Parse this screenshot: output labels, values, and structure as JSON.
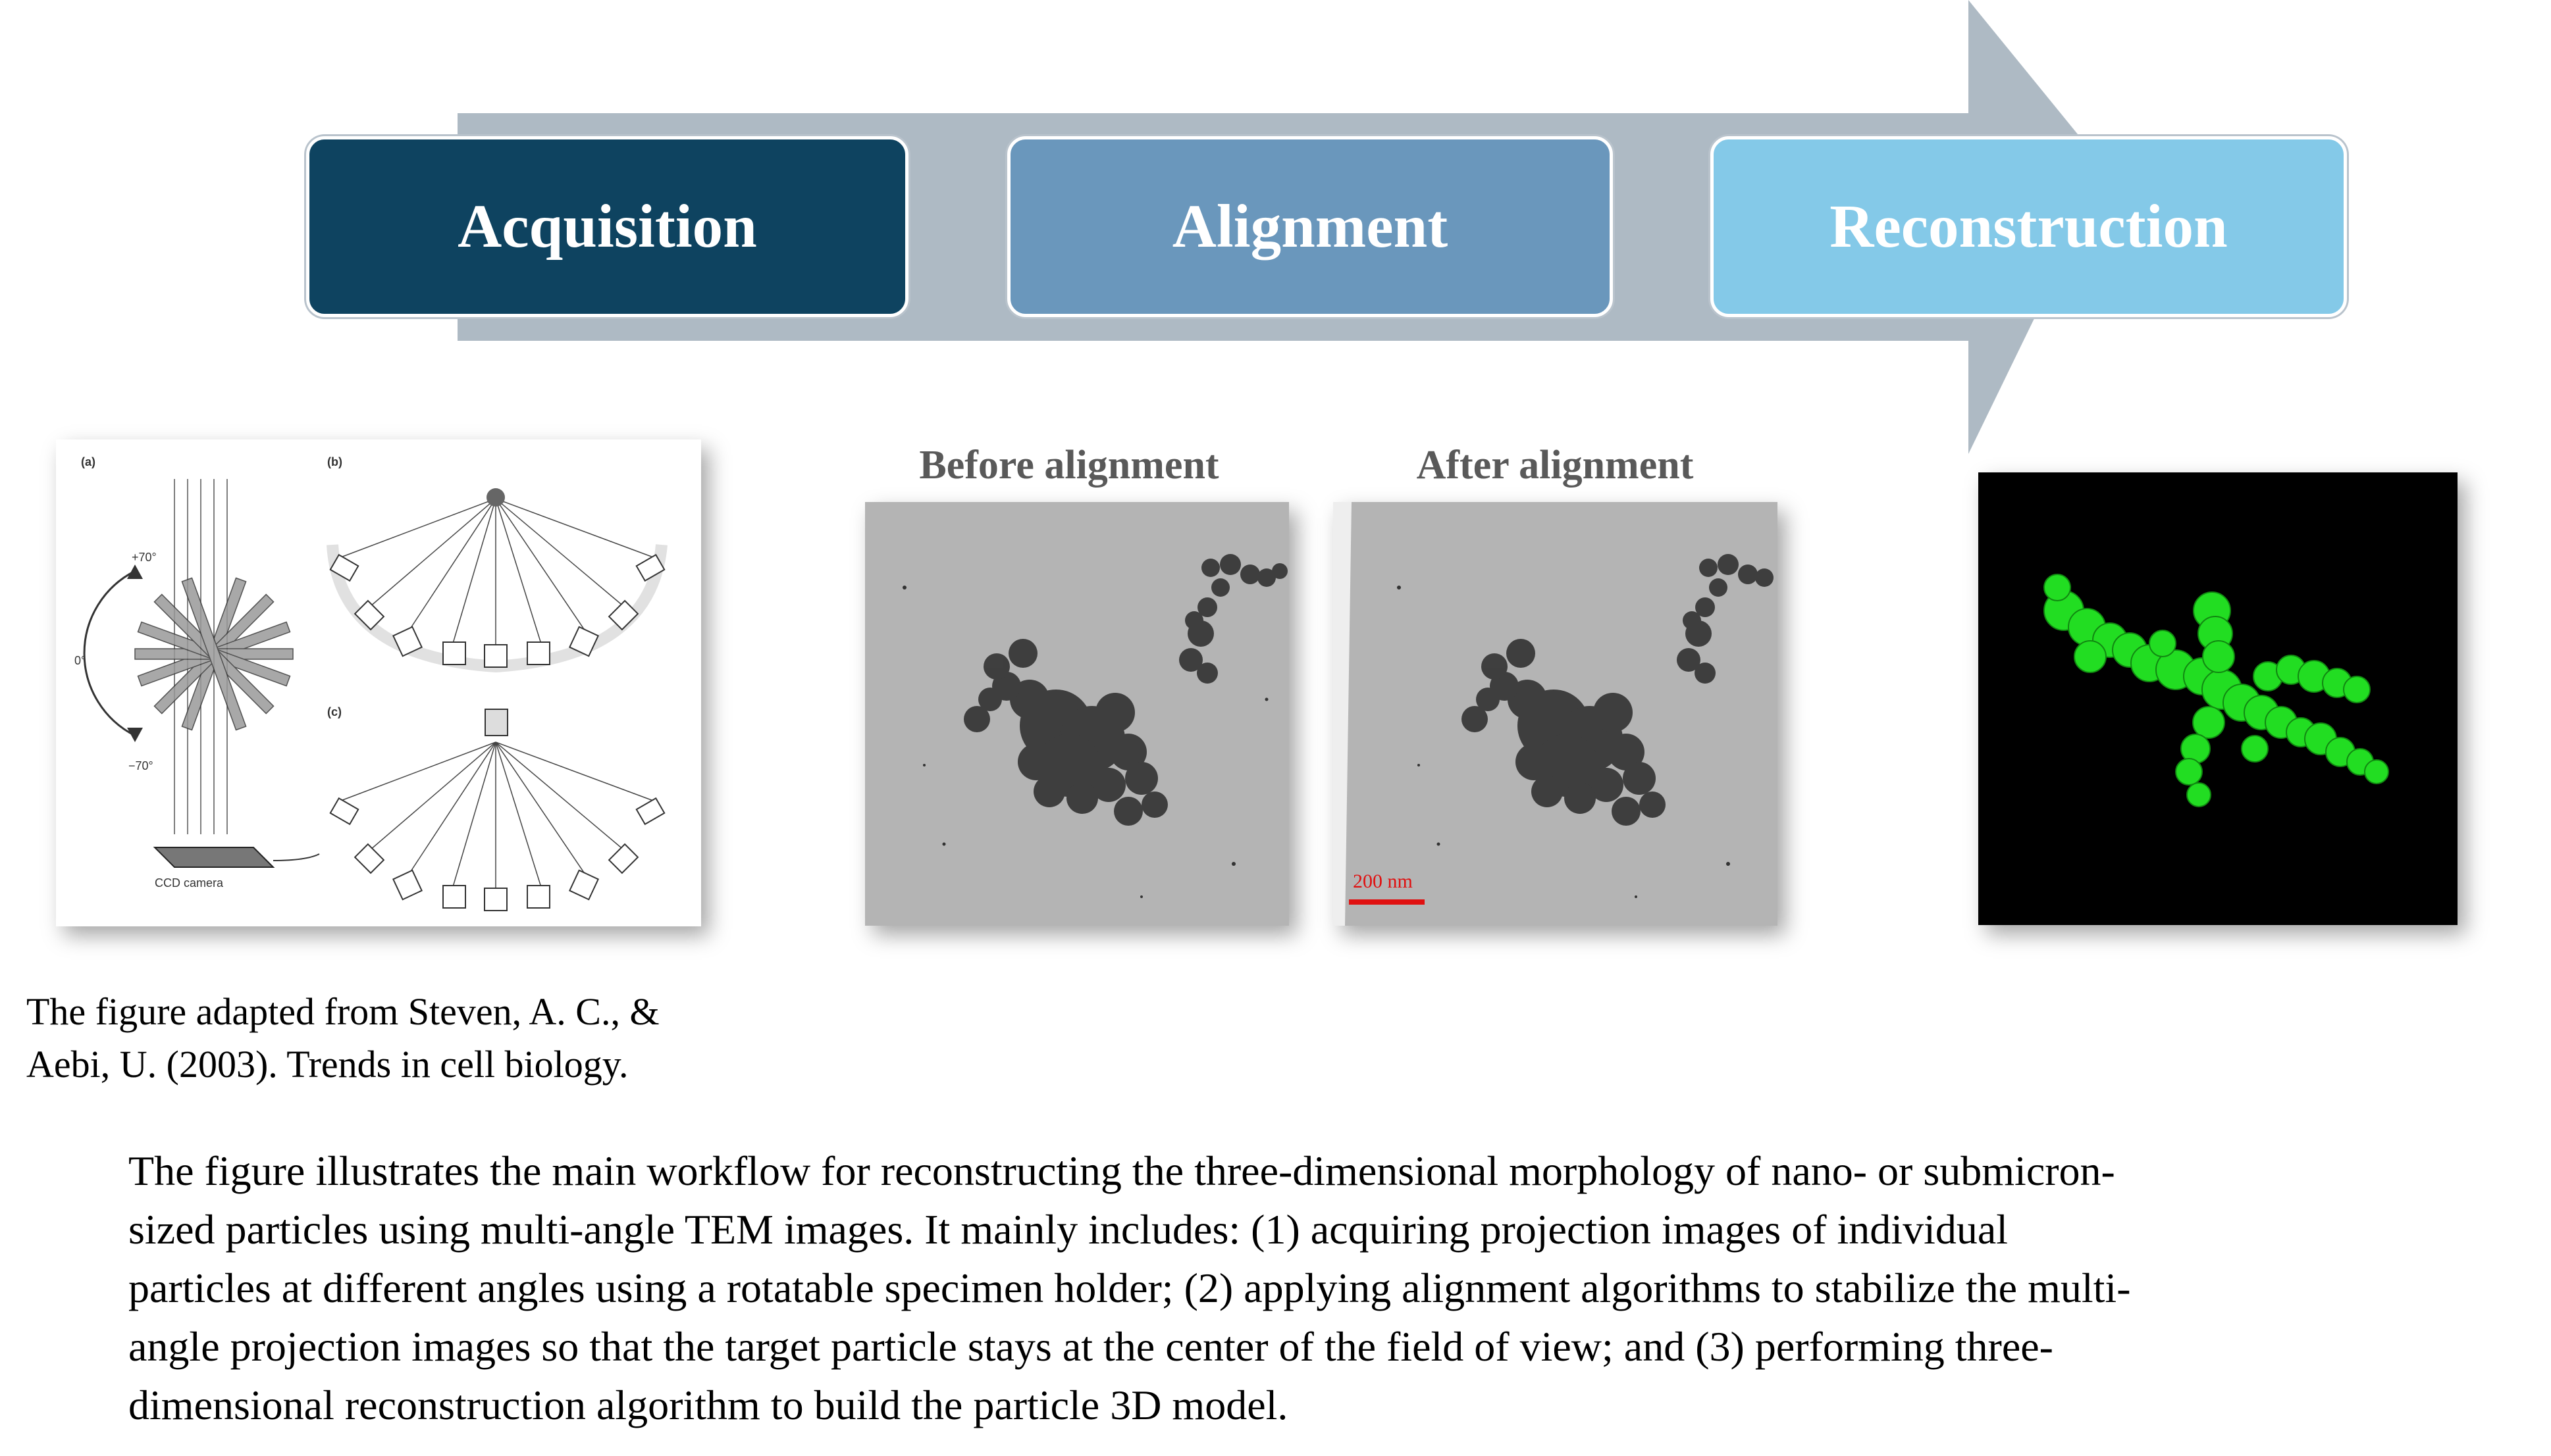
{
  "workflow": {
    "stages": [
      {
        "label": "Acquisition",
        "color": "#0e4360"
      },
      {
        "label": "Alignment",
        "color": "#6a97bc"
      },
      {
        "label": "Reconstruction",
        "color": "#84c9e8"
      }
    ],
    "arrow_color": "#aebac4"
  },
  "acquisition_panel": {
    "panel_labels": [
      "(a)",
      "(b)",
      "(c)"
    ],
    "angle_labels": [
      "+70°",
      "0°",
      "−70°"
    ],
    "camera_label": "CCD camera",
    "caption_line1": "The figure adapted from Steven, A. C., &",
    "caption_line2": "Aebi, U. (2003). Trends in cell biology."
  },
  "alignment_panel": {
    "before_label": "Before alignment",
    "after_label": "After alignment",
    "scale_bar": "200 nm",
    "scale_bar_color": "#e01010"
  },
  "reconstruction_panel": {
    "model_color": "#22dd22",
    "background_color": "#000000"
  },
  "description": {
    "lines": [
      "The figure illustrates the main workflow for reconstructing the three-dimensional morphology of nano- or submicron-",
      "sized particles using multi-angle TEM images. It mainly includes: (1) acquiring projection images of individual",
      "particles at different angles using a rotatable specimen holder; (2) applying alignment algorithms to stabilize the multi-",
      "angle projection images so that the target particle stays at the center of the field of view; and (3) performing three-",
      "dimensional reconstruction algorithm to build the particle 3D model."
    ]
  }
}
